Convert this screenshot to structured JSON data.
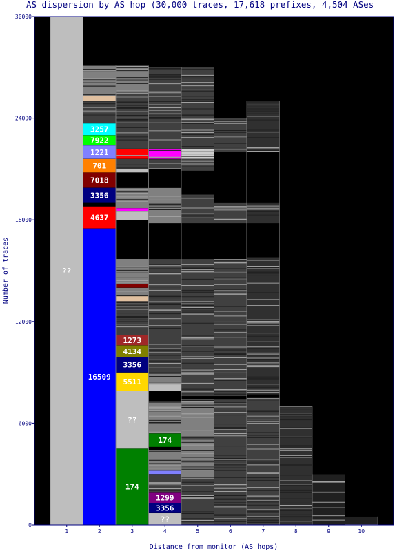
{
  "chart_data": {
    "type": "bar",
    "title": "AS dispersion by AS hop (30,000 traces, 17,618 prefixes, 4,504 ASes",
    "xlabel": "Distance from monitor (AS hops)",
    "ylabel": "Number of traces",
    "ylim": [
      0,
      30000
    ],
    "y_ticks": [
      "0",
      "6000",
      "12000",
      "18000",
      "24000",
      "30000"
    ],
    "categories": [
      "1",
      "2",
      "3",
      "4",
      "5",
      "6",
      "7",
      "8",
      "9",
      "10"
    ],
    "colors": {
      "background": "#000000",
      "unknown": "#bebebe",
      "gray": "#808080",
      "dark_gray": "#404040",
      "axis": "#000080"
    },
    "columns": [
      {
        "hop": "1",
        "total": 30000,
        "segments": [
          {
            "label": "??",
            "from": 0,
            "to": 30000,
            "color": "#bebebe"
          }
        ]
      },
      {
        "hop": "2",
        "total": 27100,
        "segments": [
          {
            "label": "16509",
            "from": 0,
            "to": 17500,
            "color": "#0000ff"
          },
          {
            "label": "4637",
            "from": 17500,
            "to": 18800,
            "color": "#ff0000"
          },
          {
            "label": "3356",
            "from": 19000,
            "to": 19900,
            "color": "#000080"
          },
          {
            "label": "7018",
            "from": 19900,
            "to": 20800,
            "color": "#800000"
          },
          {
            "label": "701",
            "from": 20800,
            "to": 21600,
            "color": "#ff8000"
          },
          {
            "label": "1221",
            "from": 21600,
            "to": 22400,
            "color": "#8080ff"
          },
          {
            "label": "7922",
            "from": 22400,
            "to": 23000,
            "color": "#00ff00"
          },
          {
            "label": "3257",
            "from": 23000,
            "to": 23700,
            "color": "#00ffff"
          },
          {
            "label": "",
            "from": 23700,
            "to": 25000,
            "color": "#404040"
          },
          {
            "label": "",
            "from": 25000,
            "to": 25300,
            "color": "#e0c0a0"
          },
          {
            "label": "",
            "from": 25300,
            "to": 27100,
            "color": "#808080"
          }
        ]
      },
      {
        "hop": "3",
        "total": 27100,
        "segments": [
          {
            "label": "174",
            "from": 0,
            "to": 4500,
            "color": "#008000"
          },
          {
            "label": "??",
            "from": 4500,
            "to": 7900,
            "color": "#bebebe"
          },
          {
            "label": "5511",
            "from": 7900,
            "to": 9000,
            "color": "#ffd700"
          },
          {
            "label": "3356",
            "from": 9000,
            "to": 9900,
            "color": "#000080"
          },
          {
            "label": "4134",
            "from": 9900,
            "to": 10600,
            "color": "#808000"
          },
          {
            "label": "1273",
            "from": 10600,
            "to": 11200,
            "color": "#a02828"
          },
          {
            "label": "",
            "from": 11200,
            "to": 13200,
            "color": "#404040"
          },
          {
            "label": "",
            "from": 13200,
            "to": 13500,
            "color": "#e0c0a0"
          },
          {
            "label": "",
            "from": 13500,
            "to": 14000,
            "color": "#808080"
          },
          {
            "label": "",
            "from": 14000,
            "to": 14200,
            "color": "#800000"
          },
          {
            "label": "",
            "from": 14200,
            "to": 15700,
            "color": "#808080"
          },
          {
            "label": "",
            "from": 18000,
            "to": 18500,
            "color": "#bebebe"
          },
          {
            "label": "",
            "from": 18500,
            "to": 18700,
            "color": "#ff00ff"
          },
          {
            "label": "",
            "from": 18700,
            "to": 19900,
            "color": "#808080"
          },
          {
            "label": "",
            "from": 20800,
            "to": 21000,
            "color": "#bebebe"
          },
          {
            "label": "",
            "from": 21000,
            "to": 21600,
            "color": "#404040"
          },
          {
            "label": "",
            "from": 21600,
            "to": 22200,
            "color": "#ff0000"
          },
          {
            "label": "",
            "from": 22200,
            "to": 25500,
            "color": "#404040"
          },
          {
            "label": "",
            "from": 25500,
            "to": 27100,
            "color": "#808080"
          }
        ]
      },
      {
        "hop": "4",
        "total": 27000,
        "segments": [
          {
            "label": "??",
            "from": 0,
            "to": 700,
            "color": "#bebebe"
          },
          {
            "label": "3356",
            "from": 700,
            "to": 1300,
            "color": "#000080"
          },
          {
            "label": "1299",
            "from": 1300,
            "to": 1900,
            "color": "#800080"
          },
          {
            "label": "",
            "from": 1900,
            "to": 3000,
            "color": "#404040"
          },
          {
            "label": "",
            "from": 3000,
            "to": 3200,
            "color": "#8080ff"
          },
          {
            "label": "",
            "from": 3200,
            "to": 4400,
            "color": "#808080"
          },
          {
            "label": "174",
            "from": 4600,
            "to": 5400,
            "color": "#008000"
          },
          {
            "label": "",
            "from": 5400,
            "to": 7300,
            "color": "#808080"
          },
          {
            "label": "",
            "from": 7900,
            "to": 8300,
            "color": "#bebebe"
          },
          {
            "label": "",
            "from": 8300,
            "to": 9000,
            "color": "#808080"
          },
          {
            "label": "",
            "from": 9000,
            "to": 15700,
            "color": "#404040"
          },
          {
            "label": "",
            "from": 17800,
            "to": 19900,
            "color": "#808080"
          },
          {
            "label": "",
            "from": 21000,
            "to": 21600,
            "color": "#404040"
          },
          {
            "label": "",
            "from": 21600,
            "to": 22200,
            "color": "#ff00ff"
          },
          {
            "label": "",
            "from": 22200,
            "to": 27000,
            "color": "#404040"
          }
        ]
      },
      {
        "hop": "5",
        "total": 27000,
        "segments": [
          {
            "label": "",
            "from": 0,
            "to": 2800,
            "color": "#404040"
          },
          {
            "label": "",
            "from": 2800,
            "to": 3800,
            "color": "#808080"
          },
          {
            "label": "",
            "from": 3800,
            "to": 7400,
            "color": "#808080"
          },
          {
            "label": "",
            "from": 7600,
            "to": 15700,
            "color": "#404040"
          },
          {
            "label": "",
            "from": 17800,
            "to": 19500,
            "color": "#404040"
          },
          {
            "label": "",
            "from": 20900,
            "to": 21600,
            "color": "#404040"
          },
          {
            "label": "",
            "from": 21600,
            "to": 22200,
            "color": "#cccccc"
          },
          {
            "label": "",
            "from": 22200,
            "to": 27000,
            "color": "#404040"
          }
        ]
      },
      {
        "hop": "6",
        "total": 24000,
        "segments": [
          {
            "label": "",
            "from": 0,
            "to": 7400,
            "color": "#404040"
          },
          {
            "label": "",
            "from": 7600,
            "to": 15700,
            "color": "#404040"
          },
          {
            "label": "",
            "from": 17800,
            "to": 19000,
            "color": "#404040"
          },
          {
            "label": "",
            "from": 22000,
            "to": 24000,
            "color": "#404040"
          }
        ]
      },
      {
        "hop": "7",
        "total": 25000,
        "segments": [
          {
            "label": "",
            "from": 0,
            "to": 7500,
            "color": "#404040"
          },
          {
            "label": "",
            "from": 7700,
            "to": 15800,
            "color": "#303030"
          },
          {
            "label": "",
            "from": 17800,
            "to": 19000,
            "color": "#303030"
          },
          {
            "label": "",
            "from": 22000,
            "to": 25000,
            "color": "#303030"
          }
        ]
      },
      {
        "hop": "8",
        "total": 7000,
        "segments": [
          {
            "label": "",
            "from": 0,
            "to": 7000,
            "color": "#303030"
          }
        ]
      },
      {
        "hop": "9",
        "total": 3000,
        "segments": [
          {
            "label": "",
            "from": 0,
            "to": 3000,
            "color": "#202020"
          }
        ]
      },
      {
        "hop": "10",
        "total": 500,
        "segments": [
          {
            "label": "",
            "from": 0,
            "to": 500,
            "color": "#202020"
          }
        ]
      }
    ]
  }
}
